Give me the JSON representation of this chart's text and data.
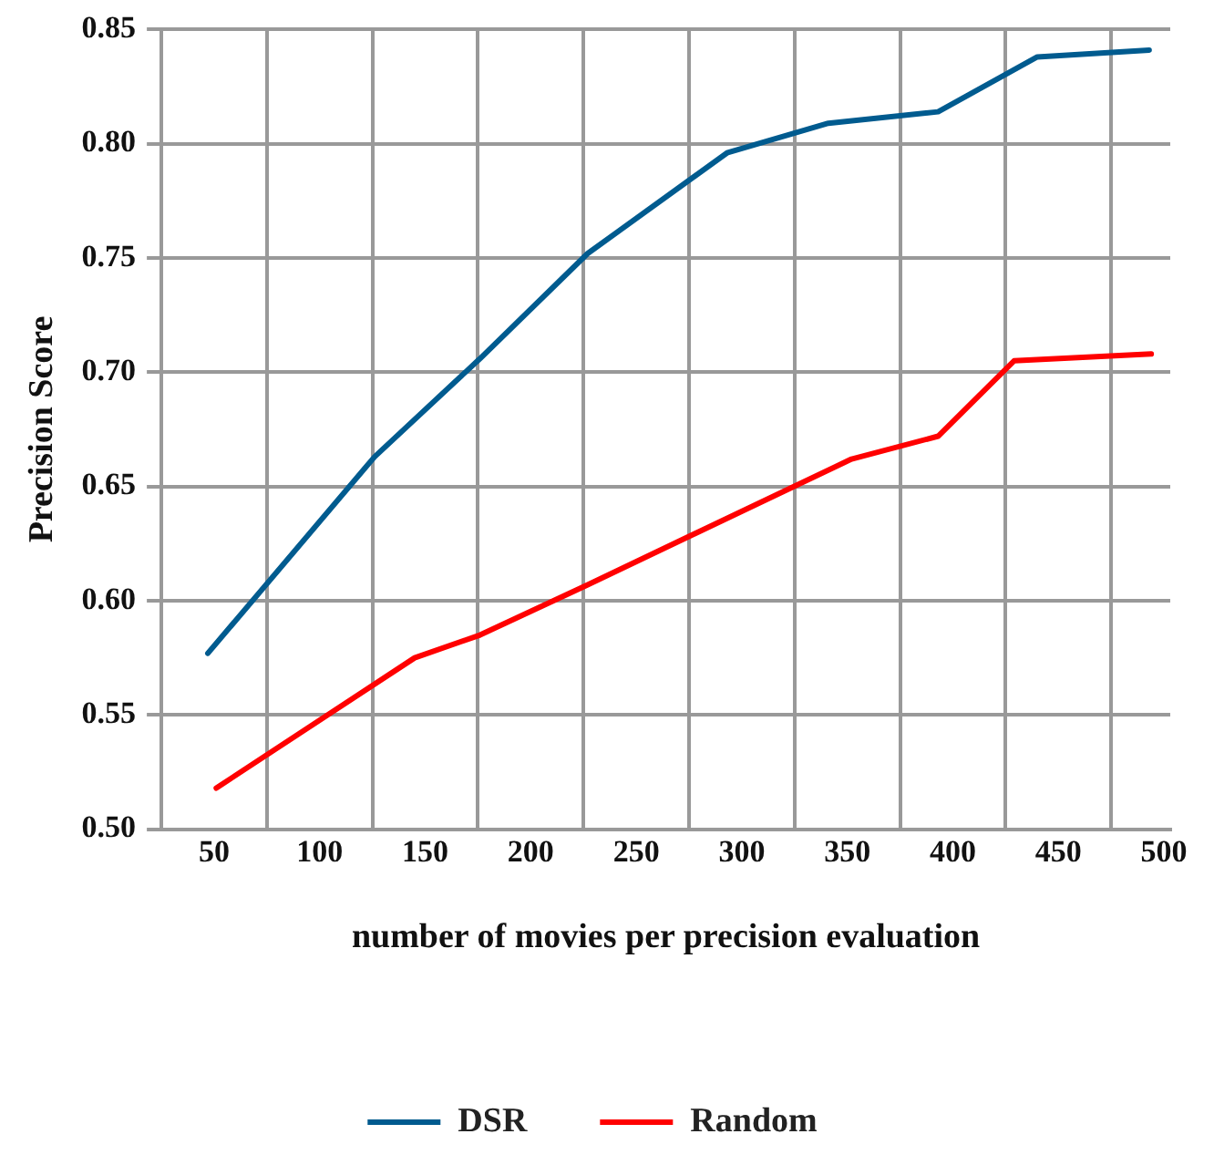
{
  "chart_data": {
    "type": "line",
    "xlabel": "number of movies per precision evaluation",
    "ylabel": "Precision Score",
    "xlim": [
      25,
      503
    ],
    "xticks": [
      {
        "value": 25,
        "label": null
      },
      50,
      {
        "value": 75,
        "label": null
      },
      100,
      {
        "value": 125,
        "label": null
      },
      150,
      {
        "value": 175,
        "label": null
      },
      200,
      {
        "value": 225,
        "label": null
      },
      250,
      {
        "value": 275,
        "label": null
      },
      300,
      {
        "value": 325,
        "label": null
      },
      350,
      {
        "value": 375,
        "label": null
      },
      400,
      {
        "value": 425,
        "label": null
      },
      450,
      {
        "value": 475,
        "label": null
      },
      500
    ],
    "ylim": [
      0.5,
      0.85
    ],
    "yticks": [
      {
        "value": 0.5,
        "label": "0.50"
      },
      {
        "value": 0.55,
        "label": "0.55"
      },
      {
        "value": 0.6,
        "label": "0.60"
      },
      {
        "value": 0.65,
        "label": "0.65"
      },
      {
        "value": 0.7,
        "label": "0.70"
      },
      {
        "value": 0.75,
        "label": "0.75"
      },
      {
        "value": 0.8,
        "label": "0.80"
      },
      {
        "value": 0.85,
        "label": "0.85"
      }
    ],
    "grid": true,
    "legend": "bottom",
    "marker": "none",
    "line_style": "solid",
    "series": [
      {
        "name": "DSR",
        "color": "#005b8f",
        "x": [
          47,
          126,
          176,
          227,
          293,
          341,
          393,
          440,
          493
        ],
        "values": [
          0.577,
          0.663,
          0.706,
          0.752,
          0.796,
          0.809,
          0.814,
          0.838,
          0.841
        ]
      },
      {
        "name": "Random",
        "color": "#ff0000",
        "x": [
          51,
          145,
          176,
          227,
          352,
          393,
          429,
          494
        ],
        "values": [
          0.518,
          0.575,
          0.585,
          0.607,
          0.662,
          0.672,
          0.705,
          0.708
        ]
      }
    ]
  }
}
